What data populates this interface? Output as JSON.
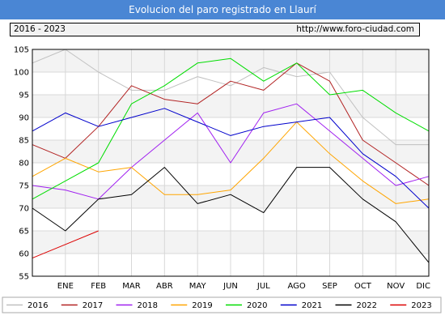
{
  "title": "Evolucion del paro registrado en Llaurí",
  "info": {
    "period": "2016 - 2023",
    "url": "http://www.foro-ciudad.com"
  },
  "chart_data": {
    "type": "line",
    "categories": [
      "ENE",
      "FEB",
      "MAR",
      "ABR",
      "MAY",
      "JUN",
      "JUL",
      "AGO",
      "SEP",
      "OCT",
      "NOV",
      "DIC"
    ],
    "ylim": [
      55,
      105
    ],
    "yticks": [
      55,
      60,
      65,
      70,
      75,
      80,
      85,
      90,
      95,
      100,
      105
    ],
    "grid": true,
    "legend_position": "bottom",
    "series": [
      {
        "name": "2016",
        "color": "#c0c0c0",
        "values": [
          105,
          100,
          96,
          96,
          99,
          97,
          101,
          99,
          100,
          90,
          84,
          84
        ],
        "start": 102
      },
      {
        "name": "2017",
        "color": "#b22222",
        "values": [
          81,
          88,
          97,
          94,
          93,
          98,
          96,
          102,
          98,
          85,
          80,
          75
        ],
        "start": 84
      },
      {
        "name": "2018",
        "color": "#a020f0",
        "values": [
          74,
          72,
          79,
          85,
          91,
          80,
          91,
          93,
          87,
          81,
          75,
          77
        ],
        "start": 75
      },
      {
        "name": "2019",
        "color": "#ffa500",
        "values": [
          81,
          78,
          79,
          73,
          73,
          74,
          81,
          89,
          82,
          76,
          71,
          72
        ],
        "start": 77
      },
      {
        "name": "2020",
        "color": "#00dd00",
        "values": [
          76,
          80,
          93,
          97,
          102,
          103,
          98,
          102,
          95,
          96,
          91,
          87
        ],
        "start": 72
      },
      {
        "name": "2021",
        "color": "#0000cc",
        "values": [
          91,
          88,
          90,
          92,
          89,
          86,
          88,
          89,
          90,
          82,
          77,
          70
        ],
        "start": 87
      },
      {
        "name": "2022",
        "color": "#000000",
        "values": [
          65,
          72,
          73,
          79,
          71,
          73,
          69,
          79,
          79,
          72,
          67,
          58
        ],
        "start": 70
      },
      {
        "name": "2023",
        "color": "#dd0000",
        "values": [
          62,
          65,
          null,
          null,
          null,
          null,
          null,
          null,
          null,
          null,
          null,
          null
        ],
        "start": 59
      }
    ]
  }
}
